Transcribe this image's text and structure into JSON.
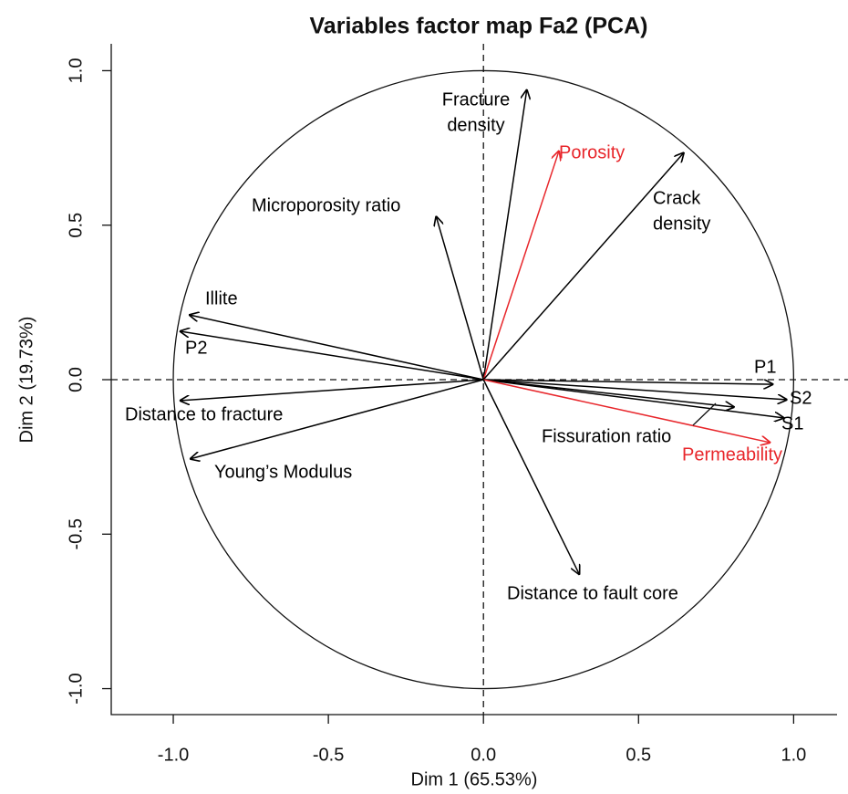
{
  "chart_data": {
    "type": "pca-arrows",
    "title": "Variables factor map Fa2 (PCA)",
    "x_label": "Dim 1 (65.53%)",
    "y_label": "Dim 2 (19.73%)",
    "xlim": [
      -1.2,
      1.14
    ],
    "ylim": [
      -1.084,
      1.087
    ],
    "xticks": [
      {
        "value": -1,
        "label": "-1.0"
      },
      -0.5,
      {
        "value": 0,
        "label": "0.0"
      },
      0.5,
      {
        "value": 1,
        "label": "1.0"
      }
    ],
    "yticks": [
      {
        "value": -1,
        "label": "-1.0"
      },
      -0.5,
      {
        "value": 0,
        "label": "0.0"
      },
      0.5,
      {
        "value": 1,
        "label": "1.0"
      }
    ],
    "variables": [
      {
        "label": [
          "Fracture",
          "density"
        ],
        "x": 0.14,
        "y": 0.94,
        "color": "#000000"
      },
      {
        "label": [
          "Porosity"
        ],
        "x": 0.244,
        "y": 0.742,
        "color": "#e8262b"
      },
      {
        "label": [
          "Crack",
          "density"
        ],
        "x": 0.647,
        "y": 0.736,
        "color": "#000000"
      },
      {
        "label": [
          "Microporosity ratio"
        ],
        "x": -0.153,
        "y": 0.53,
        "color": "#000000"
      },
      {
        "label": [
          "Illite"
        ],
        "x": -0.95,
        "y": 0.21,
        "color": "#000000"
      },
      {
        "label": [
          "P2"
        ],
        "x": -0.98,
        "y": 0.157,
        "color": "#000000"
      },
      {
        "label": [
          "Distance to fracture"
        ],
        "x": -0.98,
        "y": -0.068,
        "color": "#000000"
      },
      {
        "label": [
          "Young’s Modulus"
        ],
        "x": -0.947,
        "y": -0.257,
        "color": "#000000"
      },
      {
        "label": [
          "P1"
        ],
        "x": 0.935,
        "y": -0.015,
        "color": "#000000"
      },
      {
        "label": [
          "S2"
        ],
        "x": 0.98,
        "y": -0.065,
        "color": "#000000"
      },
      {
        "label": [
          "S1"
        ],
        "x": 0.97,
        "y": -0.124,
        "color": "#000000"
      },
      {
        "label": [
          "Fissuration ratio"
        ],
        "x": 0.81,
        "y": -0.089,
        "color": "#000000"
      },
      {
        "label": [
          "Permeability"
        ],
        "x": 0.926,
        "y": -0.204,
        "color": "#e8262b"
      },
      {
        "label": [
          "Distance to fault core"
        ],
        "x": 0.31,
        "y": -0.632,
        "color": "#000000"
      }
    ]
  }
}
